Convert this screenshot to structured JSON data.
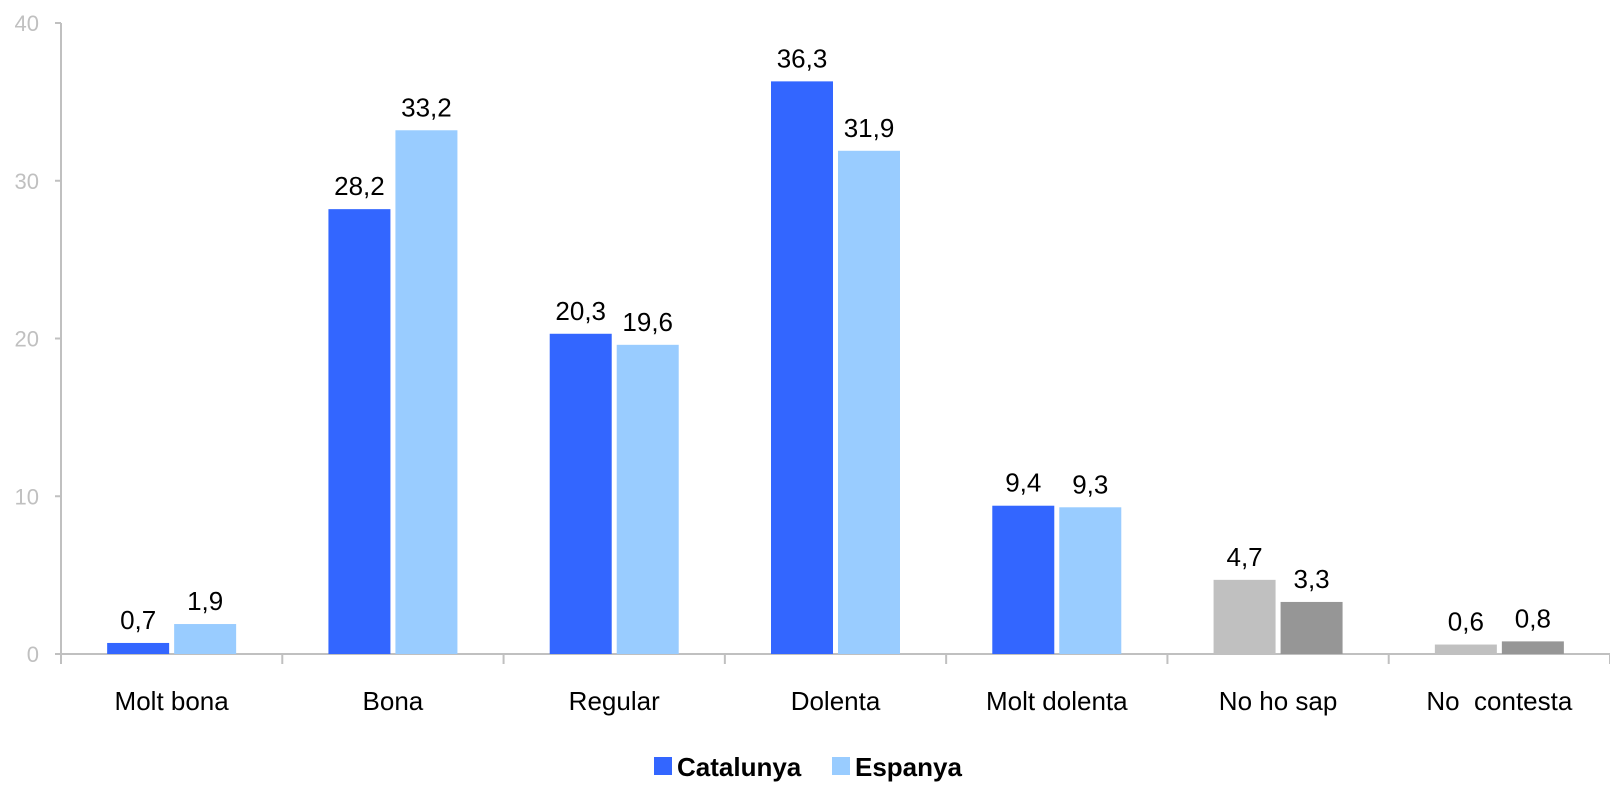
{
  "chart_data": {
    "type": "bar",
    "categories": [
      "Molt bona",
      "Bona",
      "Regular",
      "Dolenta",
      "Molt dolenta",
      "No ho sap",
      "No  contesta"
    ],
    "series": [
      {
        "name": "Catalunya",
        "values": [
          0.7,
          28.2,
          20.3,
          36.3,
          9.4,
          4.7,
          0.6
        ],
        "labels": [
          "0,7",
          "28,2",
          "20,3",
          "36,3",
          "9,4",
          "4,7",
          "0,6"
        ],
        "color": "#3366ff",
        "point_colors": [
          "#3366ff",
          "#3366ff",
          "#3366ff",
          "#3366ff",
          "#3366ff",
          "#c0c0c0",
          "#c0c0c0"
        ]
      },
      {
        "name": "Espanya",
        "values": [
          1.9,
          33.2,
          19.6,
          31.9,
          9.3,
          3.3,
          0.8
        ],
        "labels": [
          "1,9",
          "33,2",
          "19,6",
          "31,9",
          "9,3",
          "3,3",
          "0,8"
        ],
        "color": "#99ccff",
        "point_colors": [
          "#99ccff",
          "#99ccff",
          "#99ccff",
          "#99ccff",
          "#99ccff",
          "#969696",
          "#969696"
        ]
      }
    ],
    "ylim": [
      0,
      40
    ],
    "yticks": [
      0,
      10,
      20,
      30,
      40
    ],
    "ytick_labels": [
      "0",
      "10",
      "20",
      "30",
      "40"
    ],
    "grid": false,
    "legend": "bottom",
    "axis_color": "#c0c0c0"
  }
}
